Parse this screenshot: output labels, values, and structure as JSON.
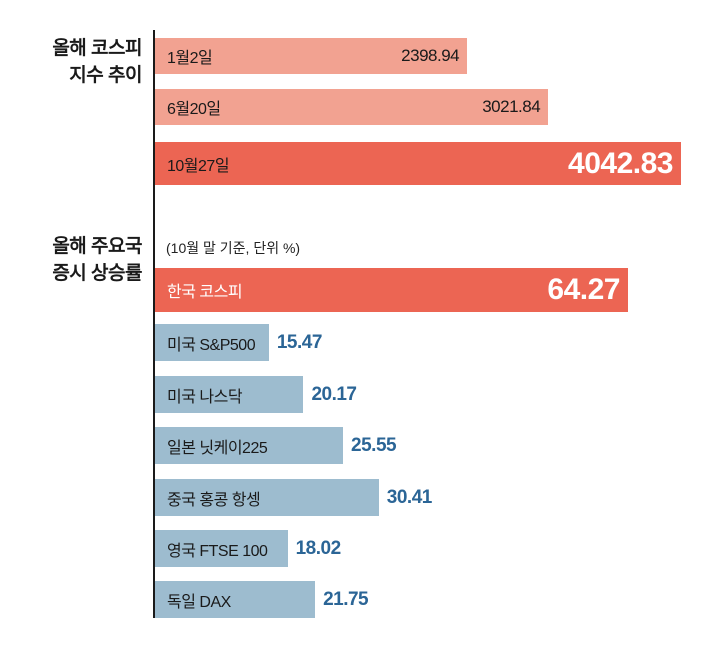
{
  "colors": {
    "light_bar": "#f2a291",
    "highlight_bar": "#ec6553",
    "blue_bar": "#9dbccf",
    "blue_value": "#2b6596"
  },
  "chart_data": [
    {
      "type": "bar",
      "orientation": "horizontal",
      "title": [
        "올해 코스피",
        "지수 추이"
      ],
      "categories": [
        "1월2일",
        "6월20일",
        "10월27일"
      ],
      "values": [
        2398.94,
        3021.84,
        4042.83
      ],
      "value_labels": [
        "2398.94",
        "3021.84",
        "4042.83"
      ],
      "highlight": [
        false,
        false,
        true
      ]
    },
    {
      "type": "bar",
      "orientation": "horizontal",
      "title": [
        "올해 주요국",
        "증시 상승률"
      ],
      "subtitle": "(10월 말 기준, 단위 %)",
      "categories": [
        "한국 코스피",
        "미국 S&P500",
        "미국 나스닥",
        "일본 닛케이225",
        "중국 홍콩 항셍",
        "영국 FTSE 100",
        "독일 DAX"
      ],
      "values": [
        64.27,
        15.47,
        20.17,
        25.55,
        30.41,
        18.02,
        21.75
      ],
      "value_labels": [
        "64.27",
        "15.47",
        "20.17",
        "25.55",
        "30.41",
        "18.02",
        "21.75"
      ],
      "highlight": [
        true,
        false,
        false,
        false,
        false,
        false,
        false
      ]
    }
  ]
}
